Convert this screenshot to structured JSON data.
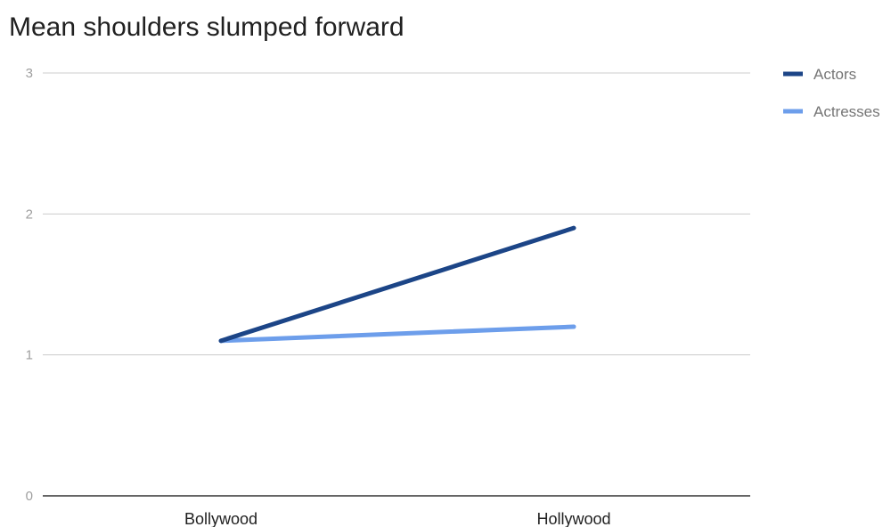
{
  "chart_data": {
    "type": "line",
    "title": "Mean shoulders slumped forward",
    "xlabel": "",
    "ylabel": "",
    "categories": [
      "Bollywood",
      "Hollywood"
    ],
    "ylim": [
      0,
      3
    ],
    "yticks": [
      "0",
      "1",
      "2",
      "3"
    ],
    "grid": true,
    "legend_position": "right",
    "series": [
      {
        "name": "Actors",
        "values": [
          1.1,
          1.9
        ],
        "color": "#1c4587"
      },
      {
        "name": "Actresses",
        "values": [
          1.1,
          1.2
        ],
        "color": "#6d9eeb"
      }
    ],
    "colors": {
      "gridline": "#cccccc",
      "axis": "#333333"
    }
  }
}
